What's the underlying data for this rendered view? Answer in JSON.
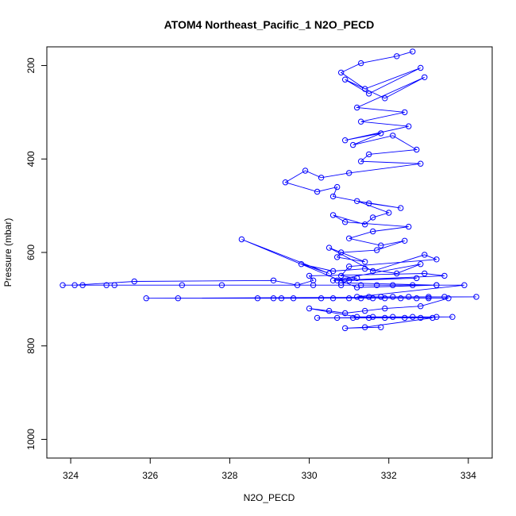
{
  "chart_data": {
    "type": "scatter",
    "title": "ATOM4 Northeast_Pacific_1 N2O_PECD",
    "xlabel": "N2O_PECD",
    "ylabel": "Pressure (mbar)",
    "xlim": [
      323.4,
      334.6
    ],
    "ylim": [
      1040,
      160
    ],
    "y_reversed": true,
    "x_ticks": [
      324,
      326,
      328,
      330,
      332,
      334
    ],
    "y_ticks": [
      200,
      400,
      600,
      800,
      1000
    ],
    "grid": false,
    "legend": "none",
    "colors": {
      "series": "#0000ff",
      "axis": "#000000"
    },
    "series": [
      {
        "mode": "lines+markers",
        "x": [
          332.6,
          332.2,
          331.3,
          330.8,
          331.4,
          332.8,
          331.5,
          330.9,
          331.9,
          332.9,
          331.2,
          332.4,
          331.3,
          332.5,
          330.9,
          331.8,
          331.1,
          332.1,
          332.7,
          331.5,
          331.3,
          332.8,
          331.0,
          330.3,
          329.9,
          329.4,
          330.2,
          330.7,
          330.6,
          331.5,
          332.3,
          331.2,
          332.0,
          331.6,
          331.4,
          330.6,
          330.9,
          332.5,
          331.6,
          331.0,
          331.8,
          332.4,
          331.7,
          330.8,
          330.7,
          331.4,
          330.5,
          331.6,
          332.9,
          333.2,
          331.0,
          330.8,
          331.2,
          330.6,
          332.8,
          332.2,
          331.4,
          330.6,
          329.8,
          330.5,
          328.3,
          331.2,
          333.2,
          330.8,
          331.0,
          332.7,
          330.7,
          333.4,
          332.9,
          330.0,
          330.1,
          329.7,
          329.1,
          325.6,
          324.1,
          323.8,
          324.3,
          324.9,
          325.1,
          326.8,
          327.8,
          330.1,
          330.8,
          331.3,
          331.7,
          332.1,
          332.6,
          333.2,
          333.9,
          331.2,
          331.5,
          331.8,
          332.1,
          332.5,
          333.0,
          333.4,
          334.2,
          325.9,
          326.7,
          328.7,
          329.1,
          329.3,
          329.6,
          330.3,
          330.6,
          331.0,
          331.3,
          331.6,
          331.9,
          332.3,
          332.7,
          333.0,
          333.5,
          332.8,
          331.9,
          331.4,
          330.9,
          330.5,
          330.0,
          331.2,
          331.6,
          332.1,
          332.6,
          333.2,
          333.6,
          330.2,
          330.7,
          331.1,
          331.5,
          331.9,
          332.4,
          332.8,
          333.1,
          331.4,
          330.9,
          331.8
        ],
        "y": [
          170,
          180,
          195,
          215,
          250,
          205,
          260,
          230,
          270,
          225,
          290,
          300,
          320,
          330,
          360,
          345,
          370,
          350,
          380,
          390,
          405,
          410,
          430,
          440,
          425,
          450,
          470,
          460,
          480,
          495,
          505,
          490,
          515,
          525,
          540,
          520,
          535,
          545,
          555,
          570,
          585,
          575,
          595,
          600,
          610,
          620,
          590,
          640,
          605,
          615,
          630,
          650,
          655,
          660,
          625,
          645,
          635,
          640,
          625,
          645,
          572,
          675,
          670,
          665,
          660,
          655,
          660,
          650,
          645,
          650,
          660,
          670,
          660,
          662,
          670,
          670,
          670,
          670,
          670,
          670,
          670,
          670,
          670,
          670,
          670,
          670,
          670,
          670,
          670,
          695,
          695,
          695,
          695,
          695,
          695,
          695,
          695,
          698,
          698,
          698,
          698,
          698,
          698,
          698,
          698,
          698,
          698,
          698,
          698,
          698,
          698,
          698,
          698,
          715,
          720,
          725,
          730,
          725,
          720,
          738,
          738,
          738,
          738,
          738,
          738,
          740,
          740,
          740,
          740,
          740,
          740,
          740,
          740,
          760,
          762,
          760
        ]
      }
    ]
  }
}
